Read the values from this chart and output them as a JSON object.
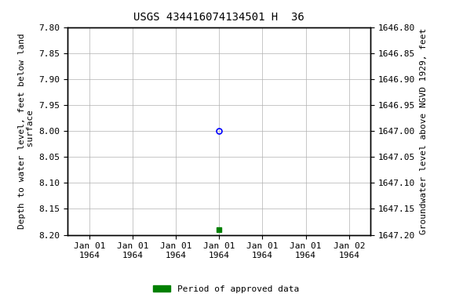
{
  "title": "USGS 434416074134501 H  36",
  "ylabel_left": "Depth to water level, feet below land\n surface",
  "ylabel_right": "Groundwater level above NGVD 1929, feet",
  "ylim_left": [
    7.8,
    8.2
  ],
  "ylim_right": [
    1646.8,
    1647.2
  ],
  "yticks_left": [
    7.8,
    7.85,
    7.9,
    7.95,
    8.0,
    8.05,
    8.1,
    8.15,
    8.2
  ],
  "yticks_right": [
    1646.8,
    1646.85,
    1646.9,
    1646.95,
    1647.0,
    1647.05,
    1647.1,
    1647.15,
    1647.2
  ],
  "point_blue_value": 8.0,
  "point_green_value": 8.19,
  "legend_label": "Period of approved data",
  "legend_color": "#008000",
  "background_color": "#ffffff",
  "plot_bg_color": "#ffffff",
  "grid_color": "#b0b0b0",
  "title_fontsize": 10,
  "axis_label_fontsize": 8,
  "tick_fontsize": 8
}
